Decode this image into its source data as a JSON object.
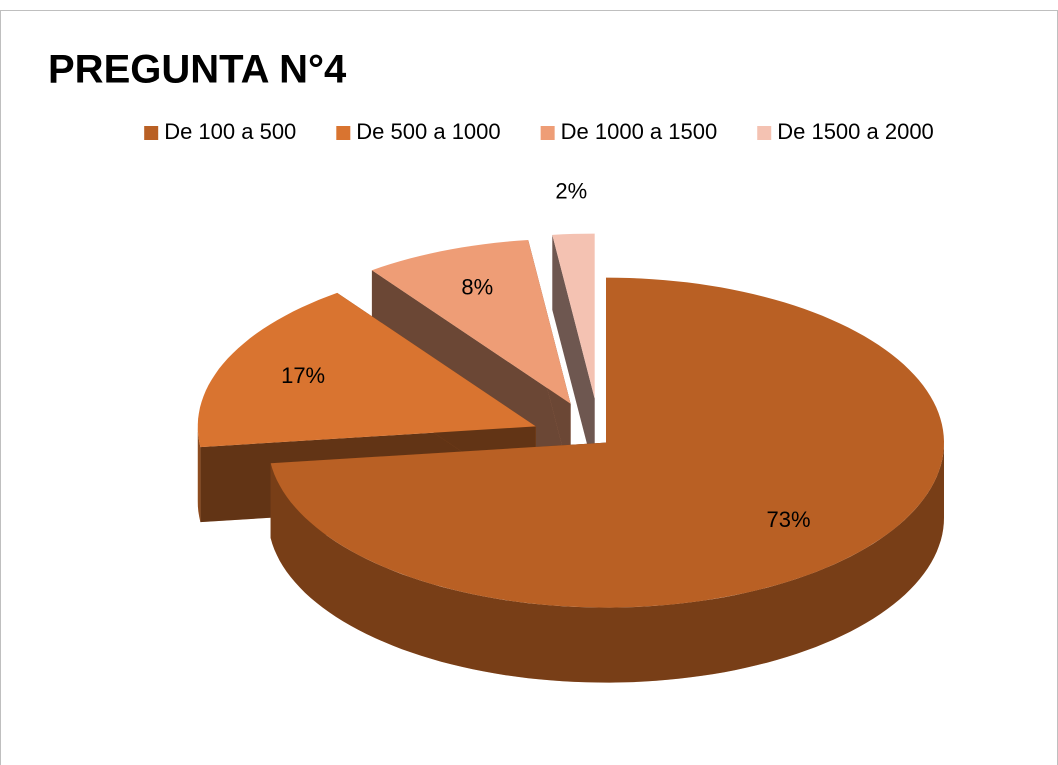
{
  "chart_data": {
    "type": "pie",
    "title": "PREGUNTA N°4",
    "categories": [
      "De 100 a 500",
      "De 500 a 1000",
      "De 1000 a 1500",
      "De 1500 a 2000"
    ],
    "values": [
      73,
      17,
      8,
      2
    ],
    "value_labels": [
      "73%",
      "17%",
      "8%",
      "2%"
    ],
    "colors": [
      "#b96024",
      "#d97430",
      "#ee9d76",
      "#f4c2b2"
    ],
    "legend": "top"
  }
}
